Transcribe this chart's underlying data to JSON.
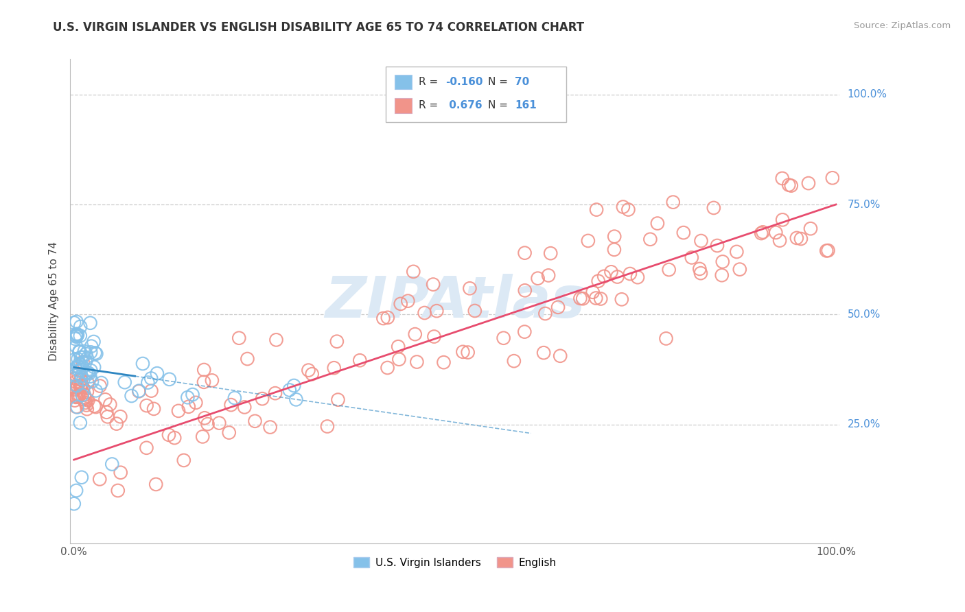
{
  "title": "U.S. VIRGIN ISLANDER VS ENGLISH DISABILITY AGE 65 TO 74 CORRELATION CHART",
  "source": "Source: ZipAtlas.com",
  "ylabel": "Disability Age 65 to 74",
  "legend_label1": "U.S. Virgin Islanders",
  "legend_label2": "English",
  "r1": -0.16,
  "n1": 70,
  "r2": 0.676,
  "n2": 161,
  "color1": "#85c1e9",
  "color2": "#f1948a",
  "line_color1": "#2e86c1",
  "line_color2": "#e74c6e",
  "watermark_color": "#dce9f5",
  "background_color": "#ffffff",
  "grid_color": "#cccccc",
  "right_label_color": "#4a90d9",
  "title_color": "#333333",
  "source_color": "#999999",
  "legend_text_color": "#333333",
  "legend_value_color": "#4a90d9",
  "en_slope": 0.58,
  "en_intercept": 0.17,
  "vi_slope": -0.25,
  "vi_intercept": 0.38
}
